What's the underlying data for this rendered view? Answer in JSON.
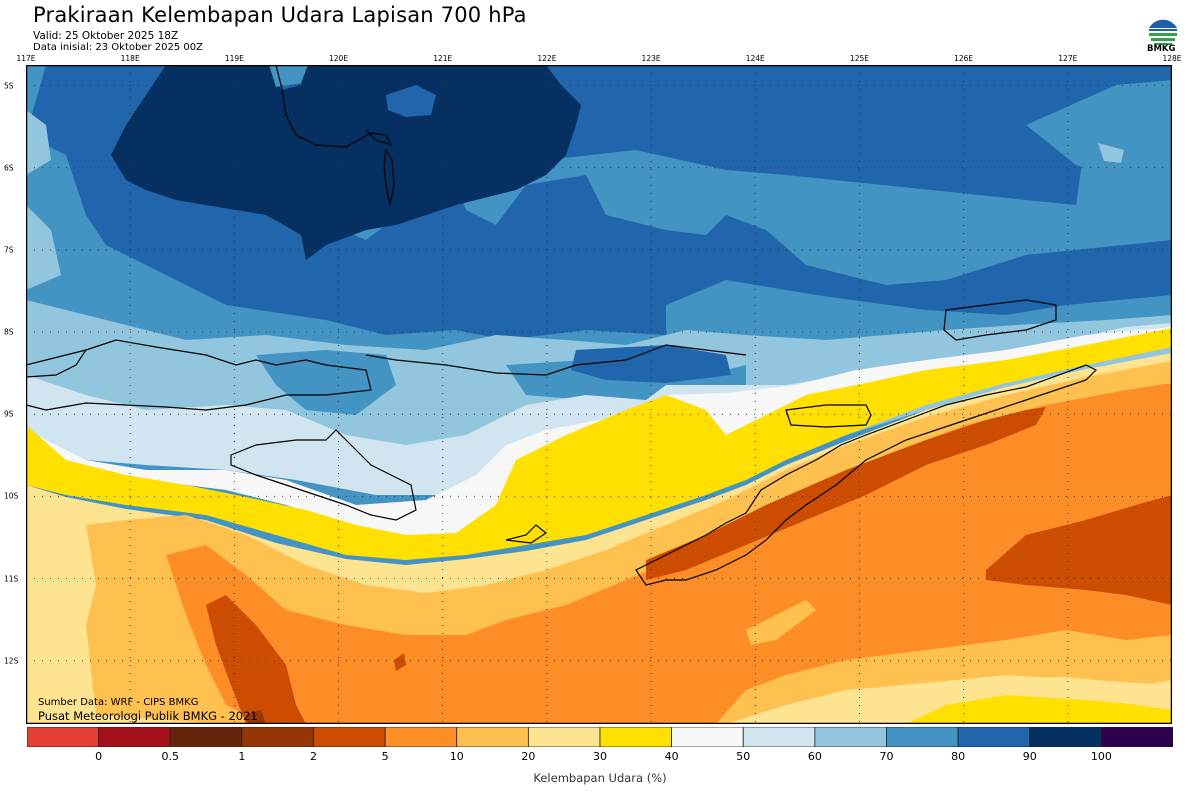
{
  "header": {
    "title": "Prakiraan Kelembapan Udara Lapisan 700 hPa",
    "valid": "Valid: 25 Oktober 2025 18Z",
    "initial": "Data inisial: 23 Oktober 2025 00Z",
    "logo_text": "BMKG"
  },
  "map": {
    "lon_labels": [
      "117E",
      "118E",
      "119E",
      "120E",
      "121E",
      "122E",
      "123E",
      "124E",
      "125E",
      "126E",
      "127E",
      "128E"
    ],
    "lat_labels": [
      "5S",
      "6S",
      "7S",
      "8S",
      "9S",
      "10S",
      "11S",
      "12S"
    ],
    "lon_range": [
      117,
      128
    ],
    "lat_range": [
      -4.75,
      -12.77
    ],
    "credits": {
      "source": "Sumber Data: WRF - CIPS BMKG",
      "publisher": "Pusat Meteorologi Publik BMKG - 2021"
    }
  },
  "colorbar": {
    "title": "Kelembapan Udara (%)",
    "tick_labels": [
      "0",
      "0.5",
      "1",
      "2",
      "5",
      "10",
      "20",
      "30",
      "40",
      "50",
      "60",
      "70",
      "80",
      "90",
      "100"
    ],
    "colors": [
      "#e53e32",
      "#a5111a",
      "#67240c",
      "#963607",
      "#cc4c02",
      "#fd8d27",
      "#fec150",
      "#fee391",
      "#ffe000",
      "#f7f7f7",
      "#d1e5f0",
      "#92c5de",
      "#4393c3",
      "#2166ac",
      "#053061",
      "#2d004b"
    ]
  }
}
